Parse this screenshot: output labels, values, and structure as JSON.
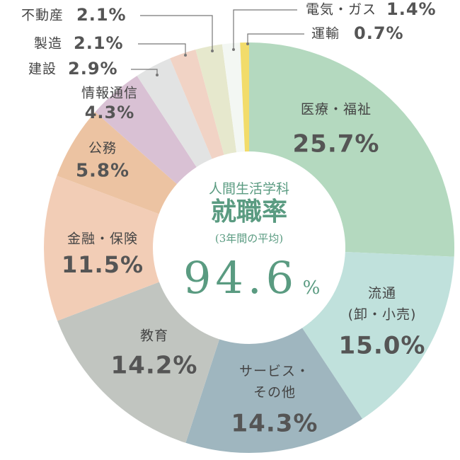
{
  "chart_data": {
    "type": "donut",
    "categories": [
      [
        "医療・福祉"
      ],
      [
        "流通",
        "(卸・小売)"
      ],
      [
        "サービス・",
        "その他"
      ],
      [
        "教育"
      ],
      [
        "金融・保険"
      ],
      [
        "公務"
      ],
      [
        "情報通信"
      ],
      [
        "建設"
      ],
      [
        "製造"
      ],
      [
        "不動産"
      ],
      [
        "電気・ガス"
      ],
      [
        "運輸"
      ]
    ],
    "values": [
      25.7,
      15.0,
      14.3,
      14.2,
      11.5,
      5.8,
      4.3,
      2.9,
      2.1,
      2.1,
      1.4,
      0.7
    ],
    "value_labels": [
      "25.7%",
      "15.0%",
      "14.3%",
      "14.2%",
      "11.5%",
      "5.8%",
      "4.3%",
      "2.9%",
      "2.1%",
      "2.1%",
      "1.4%",
      "0.7%"
    ],
    "colors": [
      "#b4d9bf",
      "#c0e1dc",
      "#9fb6bf",
      "#c1c5c0",
      "#f2cdb6",
      "#ecc3a2",
      "#d9c1d4",
      "#e2e3e3",
      "#f1d3c5",
      "#e6e8cd",
      "#f3f7f3",
      "#f2dc6a"
    ],
    "center": {
      "subtitle": "人間生活学科",
      "title": "就職率",
      "note": "(3年間の平均)",
      "value": 94.6,
      "unit": "%"
    }
  }
}
